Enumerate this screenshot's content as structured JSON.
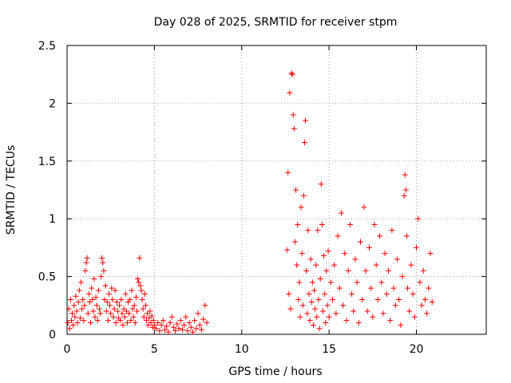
{
  "chart_data": {
    "type": "scatter",
    "title": "Day 028 of 2025, SRMTID for receiver stpm",
    "xlabel": "GPS time / hours",
    "ylabel": "SRMTID / TECUs",
    "xlim": [
      0,
      24
    ],
    "ylim": [
      0,
      2.5
    ],
    "xticks": [
      0,
      5,
      10,
      15,
      20
    ],
    "xtick_labels": [
      "0",
      "5",
      "10",
      "15",
      "20"
    ],
    "yticks": [
      0,
      0.5,
      1,
      1.5,
      2,
      2.5
    ],
    "ytick_labels": [
      "0",
      "0.5",
      "1",
      "1.5",
      "2",
      "2.5"
    ],
    "grid": true,
    "marker": "+",
    "series": [
      {
        "name": "SRMTID",
        "color": "#ff0000",
        "points": [
          [
            0.05,
            0.1
          ],
          [
            0.1,
            0.22
          ],
          [
            0.15,
            0.05
          ],
          [
            0.2,
            0.3
          ],
          [
            0.25,
            0.12
          ],
          [
            0.3,
            0.18
          ],
          [
            0.35,
            0.08
          ],
          [
            0.4,
            0.25
          ],
          [
            0.45,
            0.15
          ],
          [
            0.5,
            0.33
          ],
          [
            0.55,
            0.2
          ],
          [
            0.6,
            0.1
          ],
          [
            0.65,
            0.28
          ],
          [
            0.7,
            0.38
          ],
          [
            0.75,
            0.14
          ],
          [
            0.8,
            0.45
          ],
          [
            0.85,
            0.22
          ],
          [
            0.9,
            0.3
          ],
          [
            0.95,
            0.12
          ],
          [
            1.0,
            0.25
          ],
          [
            1.05,
            0.55
          ],
          [
            1.1,
            0.62
          ],
          [
            1.15,
            0.66
          ],
          [
            1.2,
            0.18
          ],
          [
            1.25,
            0.35
          ],
          [
            1.3,
            0.28
          ],
          [
            1.35,
            0.1
          ],
          [
            1.4,
            0.4
          ],
          [
            1.45,
            0.3
          ],
          [
            1.5,
            0.2
          ],
          [
            1.55,
            0.48
          ],
          [
            1.6,
            0.15
          ],
          [
            1.65,
            0.32
          ],
          [
            1.7,
            0.25
          ],
          [
            1.75,
            0.12
          ],
          [
            1.8,
            0.38
          ],
          [
            1.85,
            0.22
          ],
          [
            1.9,
            0.18
          ],
          [
            1.95,
            0.5
          ],
          [
            2.0,
            0.66
          ],
          [
            2.05,
            0.62
          ],
          [
            2.1,
            0.55
          ],
          [
            2.15,
            0.3
          ],
          [
            2.2,
            0.42
          ],
          [
            2.25,
            0.2
          ],
          [
            2.3,
            0.28
          ],
          [
            2.35,
            0.12
          ],
          [
            2.4,
            0.35
          ],
          [
            2.45,
            0.25
          ],
          [
            2.5,
            0.18
          ],
          [
            2.55,
            0.4
          ],
          [
            2.6,
            0.3
          ],
          [
            2.65,
            0.15
          ],
          [
            2.7,
            0.22
          ],
          [
            2.75,
            0.38
          ],
          [
            2.8,
            0.1
          ],
          [
            2.85,
            0.28
          ],
          [
            2.9,
            0.2
          ],
          [
            2.95,
            0.14
          ],
          [
            3.0,
            0.25
          ],
          [
            3.05,
            0.12
          ],
          [
            3.1,
            0.3
          ],
          [
            3.15,
            0.18
          ],
          [
            3.2,
            0.08
          ],
          [
            3.25,
            0.22
          ],
          [
            3.3,
            0.15
          ],
          [
            3.35,
            0.35
          ],
          [
            3.4,
            0.2
          ],
          [
            3.45,
            0.1
          ],
          [
            3.5,
            0.28
          ],
          [
            3.55,
            0.18
          ],
          [
            3.6,
            0.3
          ],
          [
            3.65,
            0.12
          ],
          [
            3.7,
            0.38
          ],
          [
            3.75,
            0.22
          ],
          [
            3.8,
            0.15
          ],
          [
            3.85,
            0.25
          ],
          [
            3.9,
            0.1
          ],
          [
            3.95,
            0.32
          ],
          [
            4.0,
            0.2
          ],
          [
            4.05,
            0.48
          ],
          [
            4.1,
            0.45
          ],
          [
            4.15,
            0.66
          ],
          [
            4.2,
            0.42
          ],
          [
            4.25,
            0.38
          ],
          [
            4.3,
            0.3
          ],
          [
            4.35,
            0.22
          ],
          [
            4.4,
            0.15
          ],
          [
            4.45,
            0.35
          ],
          [
            4.5,
            0.25
          ],
          [
            4.55,
            0.12
          ],
          [
            4.6,
            0.18
          ],
          [
            4.65,
            0.08
          ],
          [
            4.7,
            0.14
          ],
          [
            4.75,
            0.2
          ],
          [
            4.8,
            0.1
          ],
          [
            4.85,
            0.16
          ],
          [
            4.9,
            0.06
          ],
          [
            4.95,
            0.12
          ],
          [
            5.0,
            0.08
          ],
          [
            5.1,
            0.05
          ],
          [
            5.2,
            0.1
          ],
          [
            5.3,
            0.03
          ],
          [
            5.4,
            0.08
          ],
          [
            5.5,
            0.12
          ],
          [
            5.6,
            0.04
          ],
          [
            5.7,
            0.07
          ],
          [
            5.8,
            0.02
          ],
          [
            5.9,
            0.1
          ],
          [
            6.0,
            0.15
          ],
          [
            6.1,
            0.06
          ],
          [
            6.2,
            0.03
          ],
          [
            6.3,
            0.09
          ],
          [
            6.4,
            0.05
          ],
          [
            6.5,
            0.12
          ],
          [
            6.6,
            0.04
          ],
          [
            6.7,
            0.08
          ],
          [
            6.8,
            0.15
          ],
          [
            6.9,
            0.03
          ],
          [
            7.0,
            0.1
          ],
          [
            7.1,
            0.06
          ],
          [
            7.2,
            0.02
          ],
          [
            7.3,
            0.12
          ],
          [
            7.4,
            0.05
          ],
          [
            7.5,
            0.18
          ],
          [
            7.6,
            0.08
          ],
          [
            7.7,
            0.04
          ],
          [
            7.8,
            0.13
          ],
          [
            7.9,
            0.25
          ],
          [
            8.0,
            0.1
          ],
          [
            12.6,
            0.73
          ],
          [
            12.65,
            1.4
          ],
          [
            12.7,
            0.35
          ],
          [
            12.75,
            2.09
          ],
          [
            12.8,
            0.22
          ],
          [
            12.85,
            2.26
          ],
          [
            12.9,
            2.25
          ],
          [
            12.95,
            1.9
          ],
          [
            13.0,
            1.78
          ],
          [
            13.05,
            0.8
          ],
          [
            13.1,
            1.25
          ],
          [
            13.15,
            0.6
          ],
          [
            13.2,
            0.95
          ],
          [
            13.25,
            0.3
          ],
          [
            13.3,
            0.45
          ],
          [
            13.35,
            0.15
          ],
          [
            13.4,
            1.1
          ],
          [
            13.45,
            0.7
          ],
          [
            13.5,
            0.25
          ],
          [
            13.55,
            1.2
          ],
          [
            13.6,
            1.66
          ],
          [
            13.65,
            1.85
          ],
          [
            13.7,
            0.55
          ],
          [
            13.75,
            0.18
          ],
          [
            13.8,
            0.9
          ],
          [
            13.85,
            0.35
          ],
          [
            13.9,
            0.12
          ],
          [
            13.95,
            0.65
          ],
          [
            14.0,
            0.28
          ],
          [
            14.05,
            0.45
          ],
          [
            14.1,
            0.08
          ],
          [
            14.15,
            0.38
          ],
          [
            14.2,
            0.22
          ],
          [
            14.25,
            0.6
          ],
          [
            14.3,
            0.15
          ],
          [
            14.35,
            0.9
          ],
          [
            14.4,
            0.3
          ],
          [
            14.45,
            0.05
          ],
          [
            14.5,
            0.48
          ],
          [
            14.55,
            1.3
          ],
          [
            14.6,
            0.95
          ],
          [
            14.65,
            0.2
          ],
          [
            14.7,
            0.68
          ],
          [
            14.75,
            0.35
          ],
          [
            14.8,
            0.1
          ],
          [
            14.85,
            0.55
          ],
          [
            14.9,
            0.25
          ],
          [
            14.95,
            0.72
          ],
          [
            15.0,
            0.15
          ],
          [
            15.1,
            0.45
          ],
          [
            15.2,
            0.3
          ],
          [
            15.3,
            0.6
          ],
          [
            15.4,
            0.18
          ],
          [
            15.5,
            0.85
          ],
          [
            15.6,
            0.4
          ],
          [
            15.7,
            1.05
          ],
          [
            15.8,
            0.25
          ],
          [
            15.9,
            0.7
          ],
          [
            16.0,
            0.12
          ],
          [
            16.1,
            0.55
          ],
          [
            16.2,
            0.95
          ],
          [
            16.3,
            0.35
          ],
          [
            16.4,
            0.2
          ],
          [
            16.5,
            0.65
          ],
          [
            16.6,
            0.45
          ],
          [
            16.7,
            0.1
          ],
          [
            16.8,
            0.8
          ],
          [
            16.9,
            0.3
          ],
          [
            17.0,
            1.1
          ],
          [
            17.1,
            0.55
          ],
          [
            17.2,
            0.2
          ],
          [
            17.3,
            0.75
          ],
          [
            17.4,
            0.4
          ],
          [
            17.5,
            0.15
          ],
          [
            17.6,
            0.95
          ],
          [
            17.7,
            0.6
          ],
          [
            17.8,
            0.3
          ],
          [
            17.9,
            0.85
          ],
          [
            18.0,
            0.45
          ],
          [
            18.1,
            0.18
          ],
          [
            18.2,
            0.7
          ],
          [
            18.3,
            0.35
          ],
          [
            18.4,
            0.55
          ],
          [
            18.5,
            0.12
          ],
          [
            18.6,
            0.9
          ],
          [
            18.7,
            0.4
          ],
          [
            18.8,
            0.25
          ],
          [
            18.9,
            0.65
          ],
          [
            19.0,
            0.3
          ],
          [
            19.1,
            0.08
          ],
          [
            19.2,
            0.5
          ],
          [
            19.3,
            1.2
          ],
          [
            19.35,
            1.38
          ],
          [
            19.4,
            1.25
          ],
          [
            19.45,
            0.85
          ],
          [
            19.5,
            0.4
          ],
          [
            19.6,
            0.2
          ],
          [
            19.7,
            0.6
          ],
          [
            19.8,
            0.35
          ],
          [
            19.9,
            0.15
          ],
          [
            20.0,
            0.75
          ],
          [
            20.1,
            1.0
          ],
          [
            20.2,
            0.45
          ],
          [
            20.3,
            0.25
          ],
          [
            20.4,
            0.55
          ],
          [
            20.5,
            0.3
          ],
          [
            20.6,
            0.18
          ],
          [
            20.7,
            0.4
          ],
          [
            20.8,
            0.7
          ],
          [
            20.9,
            0.28
          ]
        ]
      }
    ]
  }
}
